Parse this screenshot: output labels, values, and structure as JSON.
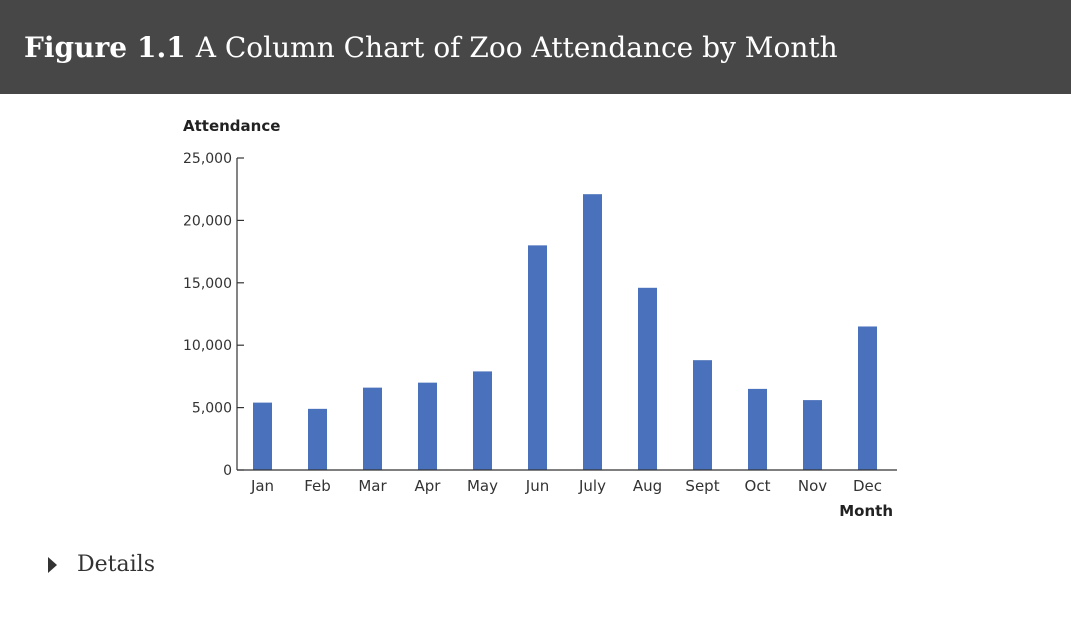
{
  "figure": {
    "label": "Figure",
    "number": "1.1",
    "caption": "A Column Chart of Zoo Attendance by Month"
  },
  "details": {
    "label": "Details",
    "icon": "triangle-right-icon"
  },
  "colors": {
    "header_bg": "#474747",
    "bar": "#4a71bb"
  },
  "chart_data": {
    "type": "bar",
    "title": "",
    "ylabel": "Attendance",
    "xlabel": "Month",
    "categories": [
      "Jan",
      "Feb",
      "Mar",
      "Apr",
      "May",
      "Jun",
      "July",
      "Aug",
      "Sept",
      "Oct",
      "Nov",
      "Dec"
    ],
    "values": [
      5400,
      4900,
      6600,
      7000,
      7900,
      18000,
      22100,
      14600,
      8800,
      6500,
      5600,
      11500
    ],
    "ylim": [
      0,
      25000
    ],
    "yticks": [
      0,
      5000,
      10000,
      15000,
      20000,
      25000
    ],
    "ytick_labels": [
      "0",
      "5,000",
      "10,000",
      "15,000",
      "20,000",
      "25,000"
    ],
    "grid": false,
    "legend": "none"
  }
}
